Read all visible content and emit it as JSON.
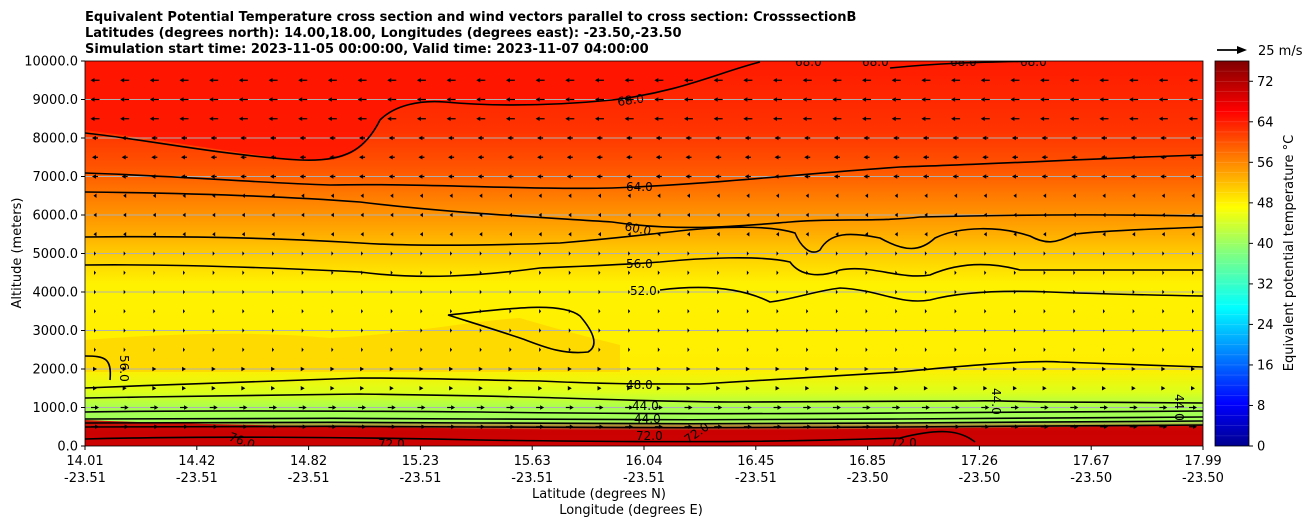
{
  "title_lines": [
    "Equivalent Potential Temperature cross section and wind vectors parallel to cross section: CrosssectionB",
    "Latitudes (degrees north): 14.00,18.00, Longitudes (degrees east): -23.50,-23.50",
    "Simulation start time: 2023-11-05 00:00:00, Valid time: 2023-11-07 04:00:00"
  ],
  "chart_data": {
    "type": "heatmap",
    "ylabel": "Altitude (meters)",
    "xlabel_line1": "Latitude (degrees N)",
    "xlabel_line2": "Longitude (degrees E)",
    "ylim": [
      0,
      10000
    ],
    "y_ticks": [
      "0.0",
      "1000.0",
      "2000.0",
      "3000.0",
      "4000.0",
      "5000.0",
      "6000.0",
      "7000.0",
      "8000.0",
      "9000.0",
      "10000.0"
    ],
    "x_ticks": [
      {
        "lat": "14.01",
        "lon": "-23.51"
      },
      {
        "lat": "14.42",
        "lon": "-23.51"
      },
      {
        "lat": "14.82",
        "lon": "-23.51"
      },
      {
        "lat": "15.23",
        "lon": "-23.51"
      },
      {
        "lat": "15.63",
        "lon": "-23.51"
      },
      {
        "lat": "16.04",
        "lon": "-23.51"
      },
      {
        "lat": "16.45",
        "lon": "-23.51"
      },
      {
        "lat": "16.85",
        "lon": "-23.50"
      },
      {
        "lat": "17.26",
        "lon": "-23.50"
      },
      {
        "lat": "17.67",
        "lon": "-23.50"
      },
      {
        "lat": "17.99",
        "lon": "-23.50"
      }
    ],
    "grid": "horizontal",
    "colorbar": {
      "label": "Equivalent potential temperature $^\\circ$C",
      "range": [
        0,
        76
      ],
      "ticks": [
        "0",
        "8",
        "16",
        "24",
        "32",
        "40",
        "48",
        "56",
        "64",
        "72"
      ],
      "colormap": "jet"
    },
    "quiver_key": "25 m/s",
    "contour_labels": [
      "68.0",
      "64.0",
      "60.0",
      "56.0",
      "52.0",
      "48.0",
      "44.0",
      "44.0",
      "44.0",
      "44.0",
      "56.0",
      "72.0",
      "72.0",
      "72.0",
      "68.0",
      "68.0",
      "68.0",
      "68.0",
      "76.0",
      "72.0"
    ],
    "profile_levels": [
      0,
      300,
      700,
      1000,
      1500,
      2000,
      3000,
      4500,
      5500,
      6500,
      7500,
      8500,
      10000
    ],
    "profile_values": [
      74,
      72,
      46,
      44,
      48,
      53,
      54,
      54,
      60,
      65,
      70,
      72,
      70
    ]
  }
}
